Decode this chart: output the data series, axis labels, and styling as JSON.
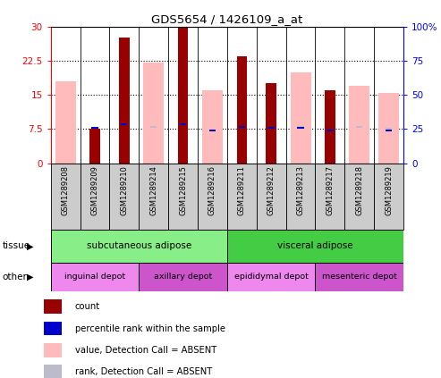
{
  "title": "GDS5654 / 1426109_a_at",
  "samples": [
    "GSM1289208",
    "GSM1289209",
    "GSM1289210",
    "GSM1289214",
    "GSM1289215",
    "GSM1289216",
    "GSM1289211",
    "GSM1289212",
    "GSM1289213",
    "GSM1289217",
    "GSM1289218",
    "GSM1289219"
  ],
  "count_values": [
    null,
    7.5,
    27.5,
    null,
    30.0,
    null,
    23.5,
    17.5,
    null,
    16.0,
    null,
    null
  ],
  "percentile_values": [
    null,
    7.8,
    8.5,
    null,
    8.5,
    7.2,
    8.0,
    7.8,
    7.8,
    7.2,
    null,
    7.2
  ],
  "absent_value_values": [
    18.0,
    null,
    null,
    22.0,
    null,
    16.0,
    null,
    null,
    20.0,
    null,
    17.0,
    15.5
  ],
  "absent_rank_values": [
    null,
    null,
    null,
    8.0,
    null,
    null,
    null,
    null,
    8.0,
    null,
    8.0,
    7.5
  ],
  "ylim_left": [
    0,
    30
  ],
  "ylim_right": [
    0,
    100
  ],
  "yticks_left": [
    0,
    7.5,
    15,
    22.5,
    30
  ],
  "yticks_right": [
    0,
    25,
    50,
    75,
    100
  ],
  "count_color": "#990000",
  "percentile_color": "#0000cc",
  "absent_value_color": "#ffbbbb",
  "absent_rank_color": "#bbbbcc",
  "sample_bg_color": "#cccccc",
  "tissue_groups": [
    {
      "label": "subcutaneous adipose",
      "start": 0,
      "end": 6,
      "color": "#88ee88"
    },
    {
      "label": "visceral adipose",
      "start": 6,
      "end": 12,
      "color": "#44cc44"
    }
  ],
  "other_groups": [
    {
      "label": "inguinal depot",
      "start": 0,
      "end": 3,
      "color": "#ee88ee"
    },
    {
      "label": "axillary depot",
      "start": 3,
      "end": 6,
      "color": "#cc55cc"
    },
    {
      "label": "epididymal depot",
      "start": 6,
      "end": 9,
      "color": "#ee88ee"
    },
    {
      "label": "mesenteric depot",
      "start": 9,
      "end": 12,
      "color": "#cc55cc"
    }
  ],
  "legend_items": [
    {
      "label": "count",
      "color": "#990000"
    },
    {
      "label": "percentile rank within the sample",
      "color": "#0000cc"
    },
    {
      "label": "value, Detection Call = ABSENT",
      "color": "#ffbbbb"
    },
    {
      "label": "rank, Detection Call = ABSENT",
      "color": "#bbbbcc"
    }
  ]
}
